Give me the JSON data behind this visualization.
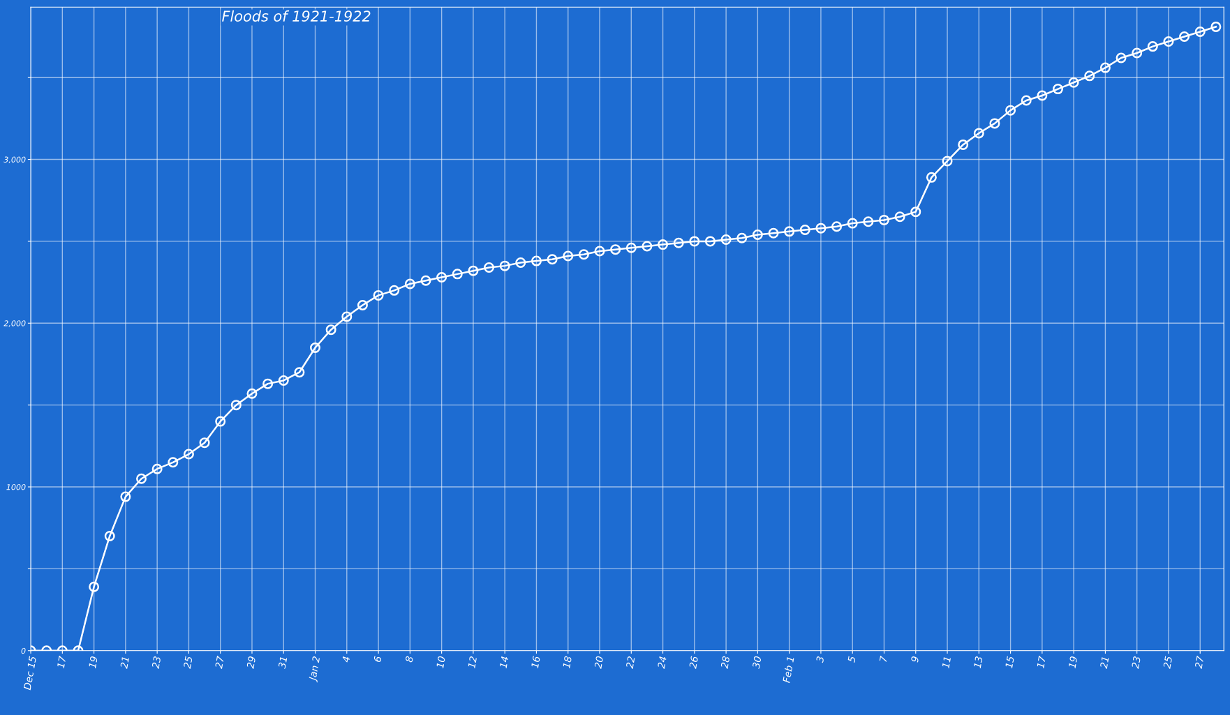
{
  "chart_data": {
    "type": "line",
    "title": "Floods of 1921-1922",
    "x": [
      "1921-12-15",
      "1921-12-16",
      "1921-12-17",
      "1921-12-18",
      "1921-12-19",
      "1921-12-20",
      "1921-12-21",
      "1921-12-22",
      "1921-12-23",
      "1921-12-24",
      "1921-12-25",
      "1921-12-26",
      "1921-12-27",
      "1921-12-28",
      "1921-12-29",
      "1921-12-30",
      "1921-12-31",
      "1922-01-01",
      "1922-01-02",
      "1922-01-03",
      "1922-01-04",
      "1922-01-05",
      "1922-01-06",
      "1922-01-07",
      "1922-01-08",
      "1922-01-09",
      "1922-01-10",
      "1922-01-11",
      "1922-01-12",
      "1922-01-13",
      "1922-01-14",
      "1922-01-15",
      "1922-01-16",
      "1922-01-17",
      "1922-01-18",
      "1922-01-19",
      "1922-01-20",
      "1922-01-21",
      "1922-01-22",
      "1922-01-23",
      "1922-01-24",
      "1922-01-25",
      "1922-01-26",
      "1922-01-27",
      "1922-01-28",
      "1922-01-29",
      "1922-01-30",
      "1922-01-31",
      "1922-02-01",
      "1922-02-02",
      "1922-02-03",
      "1922-02-04",
      "1922-02-05",
      "1922-02-06",
      "1922-02-07",
      "1922-02-08",
      "1922-02-09",
      "1922-02-10",
      "1922-02-11",
      "1922-02-12",
      "1922-02-13",
      "1922-02-14",
      "1922-02-15",
      "1922-02-16",
      "1922-02-17",
      "1922-02-18",
      "1922-02-19",
      "1922-02-20",
      "1922-02-21",
      "1922-02-22",
      "1922-02-23",
      "1922-02-24",
      "1922-02-25",
      "1922-02-26",
      "1922-02-27",
      "1922-02-28"
    ],
    "series": [
      {
        "color": "#ffffff",
        "values": [
          0,
          0,
          0,
          0,
          390,
          700,
          940,
          1050,
          1110,
          1150,
          1200,
          1270,
          1400,
          1500,
          1570,
          1630,
          1650,
          1700,
          1850,
          1960,
          2040,
          2110,
          2170,
          2200,
          2240,
          2260,
          2280,
          2300,
          2320,
          2340,
          2350,
          2370,
          2380,
          2390,
          2410,
          2420,
          2440,
          2450,
          2460,
          2470,
          2480,
          2490,
          2500,
          2500,
          2510,
          2520,
          2540,
          2550,
          2560,
          2570,
          2580,
          2590,
          2610,
          2620,
          2630,
          2650,
          2680,
          2890,
          2990,
          3090,
          3160,
          3220,
          3300,
          3360,
          3390,
          3430,
          3470,
          3510,
          3560,
          3620,
          3650,
          3690,
          3720,
          3750,
          3780,
          3810
        ]
      }
    ],
    "xlim": [
      "1921-12-15",
      "1922-02-28T12:00"
    ],
    "xticks": [
      {
        "value": "1921-12-15",
        "label": "Dec 15"
      },
      {
        "value": "1921-12-17",
        "label": "17"
      },
      {
        "value": "1921-12-19",
        "label": "19"
      },
      {
        "value": "1921-12-21",
        "label": "21"
      },
      {
        "value": "1921-12-23",
        "label": "23"
      },
      {
        "value": "1921-12-25",
        "label": "25"
      },
      {
        "value": "1921-12-27",
        "label": "27"
      },
      {
        "value": "1921-12-29",
        "label": "29"
      },
      {
        "value": "1921-12-31",
        "label": "31"
      },
      {
        "value": "1922-01-02",
        "label": "Jan 2"
      },
      {
        "value": "1922-01-04",
        "label": "4"
      },
      {
        "value": "1922-01-06",
        "label": "6"
      },
      {
        "value": "1922-01-08",
        "label": "8"
      },
      {
        "value": "1922-01-10",
        "label": "10"
      },
      {
        "value": "1922-01-12",
        "label": "12"
      },
      {
        "value": "1922-01-14",
        "label": "14"
      },
      {
        "value": "1922-01-16",
        "label": "16"
      },
      {
        "value": "1922-01-18",
        "label": "18"
      },
      {
        "value": "1922-01-20",
        "label": "20"
      },
      {
        "value": "1922-01-22",
        "label": "22"
      },
      {
        "value": "1922-01-24",
        "label": "24"
      },
      {
        "value": "1922-01-26",
        "label": "26"
      },
      {
        "value": "1922-01-28",
        "label": "28"
      },
      {
        "value": "1922-01-30",
        "label": "30"
      },
      {
        "value": "1922-02-01",
        "label": "Feb 1"
      },
      {
        "value": "1922-02-03",
        "label": "3"
      },
      {
        "value": "1922-02-05",
        "label": "5"
      },
      {
        "value": "1922-02-07",
        "label": "7"
      },
      {
        "value": "1922-02-09",
        "label": "9"
      },
      {
        "value": "1922-02-11",
        "label": "11"
      },
      {
        "value": "1922-02-13",
        "label": "13"
      },
      {
        "value": "1922-02-15",
        "label": "15"
      },
      {
        "value": "1922-02-17",
        "label": "17"
      },
      {
        "value": "1922-02-19",
        "label": "19"
      },
      {
        "value": "1922-02-21",
        "label": "21"
      },
      {
        "value": "1922-02-23",
        "label": "23"
      },
      {
        "value": "1922-02-25",
        "label": "25"
      },
      {
        "value": "1922-02-27",
        "label": "27"
      }
    ],
    "ylim": [
      0,
      3930
    ],
    "yticks": [
      0,
      {
        "value": 500,
        "label": null
      },
      {
        "value": 1000,
        "label": "1000"
      },
      {
        "value": 1500,
        "label": null
      },
      {
        "value": 2000,
        "label": "2,000"
      },
      {
        "value": 2500,
        "label": null
      },
      {
        "value": 3000,
        "label": "3,000"
      },
      {
        "value": 3500,
        "label": null
      }
    ],
    "grid": true,
    "marker": "circle",
    "line_style": "solid"
  }
}
